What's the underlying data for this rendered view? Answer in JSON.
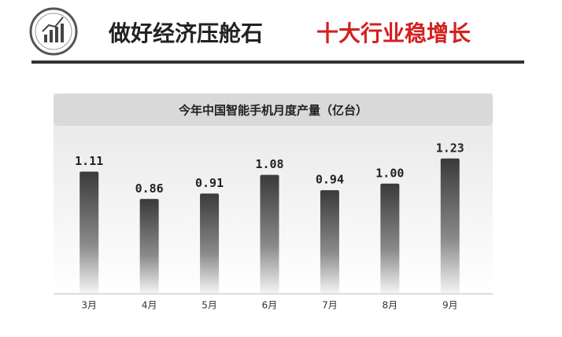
{
  "header": {
    "title": [
      "做好经济压舱石",
      "十大行业稳增长"
    ]
  },
  "chart_data": {
    "type": "bar",
    "title": "今年中国智能手机月度产量（亿台）",
    "categories": [
      "3月",
      "4月",
      "5月",
      "6月",
      "7月",
      "8月",
      "9月"
    ],
    "values": [
      1.11,
      0.86,
      0.91,
      1.08,
      0.94,
      1.0,
      1.23
    ],
    "value_labels": [
      "1.11",
      "0.86",
      "0.91",
      "1.08",
      "0.94",
      "1.00",
      "1.23"
    ],
    "color": "#3a3a3a",
    "ylim": [
      0,
      1.25
    ]
  }
}
